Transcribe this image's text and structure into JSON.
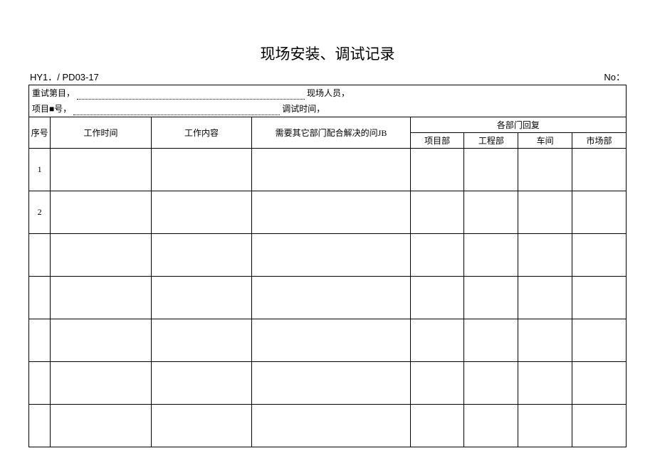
{
  "title": "现场安装、调试记录",
  "doc_code": "HY1．/ PD03-17",
  "no_label": "No：",
  "meta": {
    "line1_a": "重试第目，",
    "line1_b": "现场人员，",
    "line2_a": "项目■号，",
    "line2_b": "调试时间，"
  },
  "columns": {
    "seq": "序号",
    "work_time": "工作时间",
    "work_content": "工作内容",
    "issue": "需要其它部门配合解决的问JB",
    "reply_group": "各部门回复",
    "reply_sub": [
      "项目部",
      "工程部",
      "车间",
      "市场部"
    ]
  },
  "rows": [
    {
      "seq": "1",
      "work_time": "",
      "work_content": "",
      "issue": "",
      "r1": "",
      "r2": "",
      "r3": "",
      "r4": ""
    },
    {
      "seq": "2",
      "work_time": "",
      "work_content": "",
      "issue": "",
      "r1": "",
      "r2": "",
      "r3": "",
      "r4": ""
    },
    {
      "seq": "",
      "work_time": "",
      "work_content": "",
      "issue": "",
      "r1": "",
      "r2": "",
      "r3": "",
      "r4": ""
    },
    {
      "seq": "",
      "work_time": "",
      "work_content": "",
      "issue": "",
      "r1": "",
      "r2": "",
      "r3": "",
      "r4": ""
    },
    {
      "seq": "",
      "work_time": "",
      "work_content": "",
      "issue": "",
      "r1": "",
      "r2": "",
      "r3": "",
      "r4": ""
    },
    {
      "seq": "",
      "work_time": "",
      "work_content": "",
      "issue": "",
      "r1": "",
      "r2": "",
      "r3": "",
      "r4": ""
    },
    {
      "seq": "",
      "work_time": "",
      "work_content": "",
      "issue": "",
      "r1": "",
      "r2": "",
      "r3": "",
      "r4": ""
    }
  ],
  "style": {
    "dot_w1": "320px",
    "dot_w2": "290px"
  }
}
